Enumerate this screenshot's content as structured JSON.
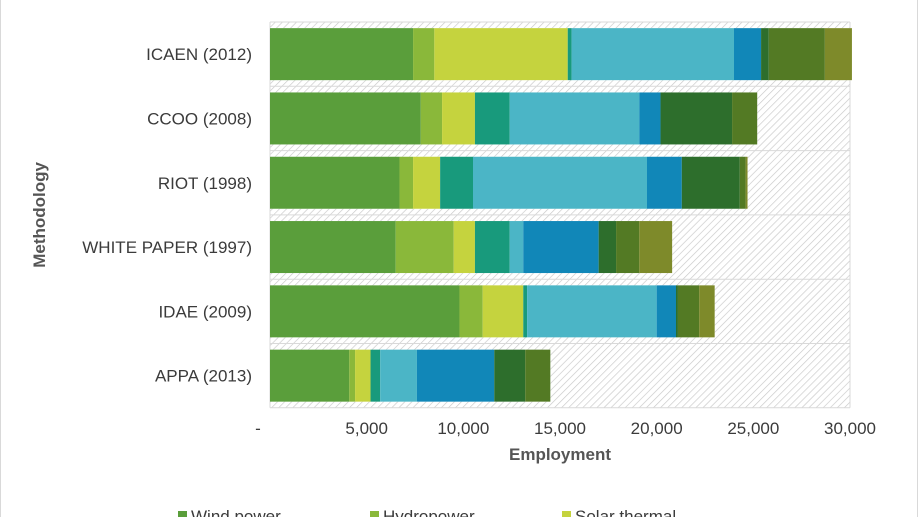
{
  "chart_data": {
    "type": "bar",
    "orientation": "horizontal",
    "stacked": true,
    "xlabel": "Employment",
    "ylabel": "Methodology",
    "xlim": [
      0,
      30000
    ],
    "x_ticks": [
      "-",
      "5,000",
      "10,000",
      "15,000",
      "20,000",
      "25,000",
      "30,000"
    ],
    "categories": [
      "ICAEN (2012)",
      "CCOO (2008)",
      "RIOT (1998)",
      "WHITE PAPER (1997)",
      "IDAE (2009)",
      "APPA (2013)"
    ],
    "series": [
      {
        "name": "Wind power",
        "color": "#5a9e3b",
        "values": [
          7400,
          7800,
          6700,
          6500,
          9800,
          4100
        ]
      },
      {
        "name": "Hydropower",
        "color": "#8ab83a",
        "values": [
          1100,
          1100,
          700,
          3000,
          1200,
          300
        ]
      },
      {
        "name": "Solar thermal",
        "color": "#c5d33e",
        "values": [
          6900,
          1700,
          1400,
          1100,
          2100,
          800
        ]
      },
      {
        "name": "",
        "color": "#189a7c",
        "values": [
          200,
          1800,
          1700,
          1800,
          200,
          500
        ]
      },
      {
        "name": "",
        "color": "#4bb5c6",
        "values": [
          8400,
          6700,
          9000,
          700,
          6700,
          1900
        ]
      },
      {
        "name": "",
        "color": "#1187b8",
        "values": [
          1400,
          1100,
          1800,
          3900,
          1000,
          4000
        ]
      },
      {
        "name": "",
        "color": "#2d6e2c",
        "values": [
          400,
          3700,
          3000,
          900,
          100,
          1600
        ]
      },
      {
        "name": "",
        "color": "#537a24",
        "values": [
          2900,
          1300,
          300,
          1200,
          1100,
          1300
        ]
      },
      {
        "name": "",
        "color": "#7e8a2a",
        "values": [
          1400,
          0,
          100,
          1700,
          800,
          0
        ]
      }
    ],
    "remainder_pattern": "hatched"
  },
  "legend": {
    "items": [
      {
        "label": "Wind power",
        "color": "#5a9e3b"
      },
      {
        "label": "Hydropower",
        "color": "#8ab83a"
      },
      {
        "label": "Solar thermal",
        "color": "#c5d33e"
      }
    ]
  }
}
